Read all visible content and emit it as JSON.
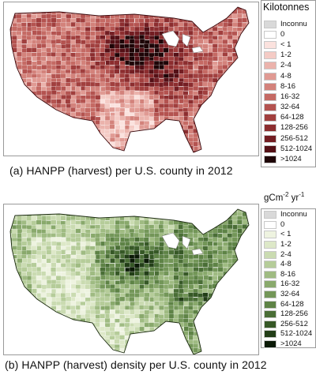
{
  "panels": [
    {
      "caption": "(a)  HANPP (harvest) per U.S. county in 2012",
      "legend_title": "Kilotonnes",
      "palette": "red",
      "legend": [
        {
          "label": "Inconnu",
          "color": "#d9d9d9"
        },
        {
          "label": "0",
          "color": "#ffffff"
        },
        {
          "label": "< 1",
          "color": "#fbe2de"
        },
        {
          "label": "1-2",
          "color": "#f4cbc5"
        },
        {
          "label": "2-4",
          "color": "#ebb3ac"
        },
        {
          "label": "4-8",
          "color": "#e09a93"
        },
        {
          "label": "8-16",
          "color": "#d3827b"
        },
        {
          "label": "16-32",
          "color": "#c56a64"
        },
        {
          "label": "32-64",
          "color": "#b45350"
        },
        {
          "label": "64-128",
          "color": "#a13f3e"
        },
        {
          "label": "128-256",
          "color": "#8c2d2f"
        },
        {
          "label": "256-512",
          "color": "#731d22"
        },
        {
          "label": "512-1024",
          "color": "#541016"
        },
        {
          "label": ">1024",
          "color": "#1e0507"
        }
      ]
    },
    {
      "caption": "(b) HANPP (harvest) density per U.S. county in 2012",
      "legend_title": "gCm",
      "legend_title_exp1": "-2",
      "legend_title_unit2": " yr",
      "legend_title_exp2": "-1",
      "palette": "green",
      "legend": [
        {
          "label": "Inconnu",
          "color": "#d9d9d9"
        },
        {
          "label": "0",
          "color": "#ffffff"
        },
        {
          "label": "< 1",
          "color": "#eef3e0"
        },
        {
          "label": "1-2",
          "color": "#dde8c8"
        },
        {
          "label": "2-4",
          "color": "#cadbb1"
        },
        {
          "label": "4-8",
          "color": "#b5cc99"
        },
        {
          "label": "8-16",
          "color": "#9fbb82"
        },
        {
          "label": "16-32",
          "color": "#89a96c"
        },
        {
          "label": "32-64",
          "color": "#739658"
        },
        {
          "label": "64-128",
          "color": "#5e8346"
        },
        {
          "label": "128-256",
          "color": "#4a6e36"
        },
        {
          "label": "256-512",
          "color": "#365826"
        },
        {
          "label": "512-1024",
          "color": "#223e17"
        },
        {
          "label": ">1024",
          "color": "#0b1a06"
        }
      ]
    }
  ]
}
